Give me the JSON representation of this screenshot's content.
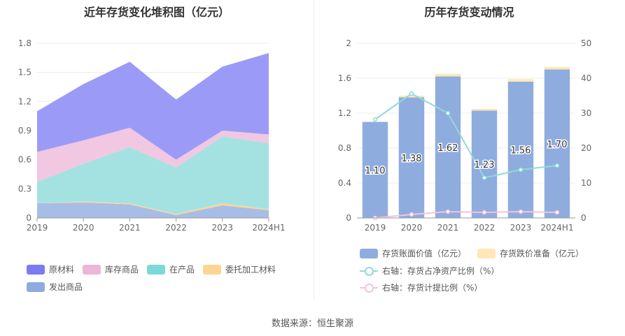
{
  "chart_data": [
    {
      "type": "area",
      "stacked": true,
      "title": "近年存货变化堆积图（亿元）",
      "categories": [
        "2019",
        "2020",
        "2021",
        "2022",
        "2023",
        "2024H1"
      ],
      "ylim": [
        0,
        1.8
      ],
      "yticks": [
        "0",
        "0.3",
        "0.6",
        "0.9",
        "1.2",
        "1.5",
        "1.8"
      ],
      "grid": true,
      "legend_position": "bottom",
      "series": [
        {
          "name": "发出商品",
          "color": "#a8bde6",
          "values": [
            0.15,
            0.16,
            0.14,
            0.03,
            0.13,
            0.08
          ]
        },
        {
          "name": "委托加工材料",
          "color": "#ffd591",
          "values": [
            0.0,
            0.01,
            0.01,
            0.01,
            0.02,
            0.01
          ]
        },
        {
          "name": "在产品",
          "color": "#a4e2e2",
          "values": [
            0.22,
            0.39,
            0.58,
            0.48,
            0.69,
            0.68
          ]
        },
        {
          "name": "库存商品",
          "color": "#f1c7e1",
          "values": [
            0.31,
            0.24,
            0.2,
            0.08,
            0.06,
            0.09
          ]
        },
        {
          "name": "原材料",
          "color": "#9b9bf7",
          "values": [
            0.42,
            0.58,
            0.68,
            0.62,
            0.66,
            0.84
          ]
        }
      ],
      "legend_order": [
        {
          "name": "原材料",
          "color": "#7b7bf4"
        },
        {
          "name": "库存商品",
          "color": "#ebb6d8"
        },
        {
          "name": "在产品",
          "color": "#7dd8d8"
        },
        {
          "name": "委托加工材料",
          "color": "#ffd591"
        },
        {
          "name": "发出商品",
          "color": "#8eaadf"
        }
      ]
    },
    {
      "type": "bar",
      "stacked": true,
      "title": "历年存货变动情况",
      "categories": [
        "2019",
        "2020",
        "2021",
        "2022",
        "2023",
        "2024H1"
      ],
      "ylim": [
        0,
        2
      ],
      "yticks": [
        "0",
        "0.4",
        "0.8",
        "1.2",
        "1.6",
        "2"
      ],
      "y2lim": [
        0,
        50
      ],
      "y2ticks": [
        "0",
        "10",
        "20",
        "30",
        "40",
        "50"
      ],
      "grid": true,
      "legend_position": "bottom",
      "series": [
        {
          "name": "存货账面价值（亿元）",
          "color": "#8facde",
          "axis": "left",
          "kind": "bar",
          "values": [
            1.1,
            1.38,
            1.62,
            1.23,
            1.56,
            1.7
          ],
          "labels": [
            "1.10",
            "1.38",
            "1.62",
            "1.23",
            "1.56",
            "1.70"
          ]
        },
        {
          "name": "存货跌价准备（亿元）",
          "color": "#ffe7b8",
          "axis": "left",
          "kind": "bar",
          "values": [
            0.0,
            0.02,
            0.03,
            0.02,
            0.03,
            0.03
          ]
        },
        {
          "name": "右轴：存货占净资产比例（%）",
          "color": "#8fdada",
          "axis": "right",
          "kind": "line",
          "values": [
            28.2,
            35.6,
            30.0,
            11.5,
            13.8,
            15.0
          ]
        },
        {
          "name": "右轴：存货计提比例（%）",
          "color": "#f2c4dc",
          "axis": "right",
          "kind": "line",
          "values": [
            0.0,
            1.0,
            1.8,
            1.6,
            1.8,
            1.6
          ]
        }
      ]
    }
  ],
  "footer": "数据来源：恒生聚源"
}
